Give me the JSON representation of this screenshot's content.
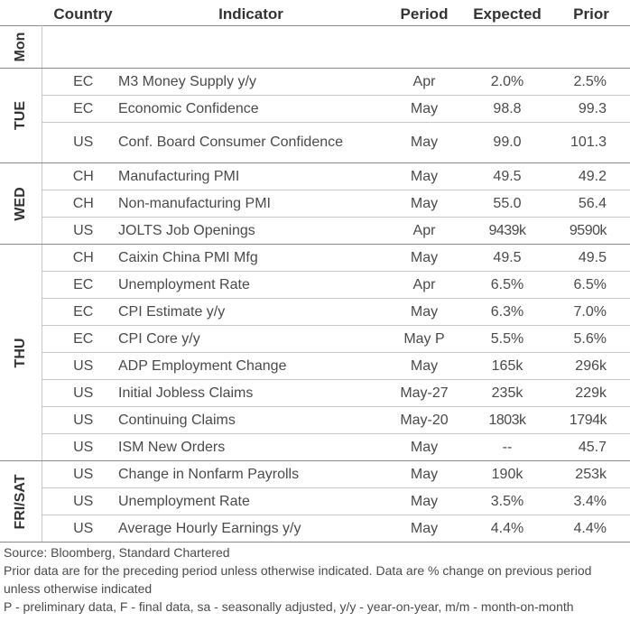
{
  "headers": {
    "country": "Country",
    "indicator": "Indicator",
    "period": "Period",
    "expected": "Expected",
    "prior": "Prior"
  },
  "days": [
    {
      "label": "Mon",
      "rows": []
    },
    {
      "label": "TUE",
      "rows": [
        {
          "country": "EC",
          "indicator": "M3 Money Supply y/y",
          "period": "Apr",
          "expected": "2.0%",
          "prior": "2.5%"
        },
        {
          "country": "EC",
          "indicator": "Economic Confidence",
          "period": "May",
          "expected": "98.8",
          "prior": "99.3"
        },
        {
          "country": "US",
          "indicator": "Conf. Board Consumer Confidence",
          "period": "May",
          "expected": "99.0",
          "prior": "101.3"
        }
      ]
    },
    {
      "label": "WED",
      "rows": [
        {
          "country": "CH",
          "indicator": "Manufacturing PMI",
          "period": "May",
          "expected": "49.5",
          "prior": "49.2"
        },
        {
          "country": "CH",
          "indicator": "Non-manufacturing PMI",
          "period": "May",
          "expected": "55.0",
          "prior": "56.4"
        },
        {
          "country": "US",
          "indicator": "JOLTS Job Openings",
          "period": "Apr",
          "expected": "9439k",
          "prior": "9590k"
        }
      ]
    },
    {
      "label": "THU",
      "rows": [
        {
          "country": "CH",
          "indicator": "Caixin China PMI Mfg",
          "period": "May",
          "expected": "49.5",
          "prior": "49.5"
        },
        {
          "country": "EC",
          "indicator": "Unemployment Rate",
          "period": "Apr",
          "expected": "6.5%",
          "prior": "6.5%"
        },
        {
          "country": "EC",
          "indicator": "CPI Estimate y/y",
          "period": "May",
          "expected": "6.3%",
          "prior": "7.0%"
        },
        {
          "country": "EC",
          "indicator": "CPI Core y/y",
          "period": "May P",
          "expected": "5.5%",
          "prior": "5.6%"
        },
        {
          "country": "US",
          "indicator": "ADP Employment Change",
          "period": "May",
          "expected": "165k",
          "prior": "296k"
        },
        {
          "country": "US",
          "indicator": "Initial Jobless Claims",
          "period": "May-27",
          "expected": "235k",
          "prior": "229k"
        },
        {
          "country": "US",
          "indicator": "Continuing Claims",
          "period": "May-20",
          "expected": "1803k",
          "prior": "1794k"
        },
        {
          "country": "US",
          "indicator": "ISM New Orders",
          "period": "May",
          "expected": "--",
          "prior": "45.7"
        }
      ]
    },
    {
      "label": "FRI/SAT",
      "rows": [
        {
          "country": "US",
          "indicator": "Change in Nonfarm Payrolls",
          "period": "May",
          "expected": "190k",
          "prior": "253k"
        },
        {
          "country": "US",
          "indicator": "Unemployment Rate",
          "period": "May",
          "expected": "3.5%",
          "prior": "3.4%"
        },
        {
          "country": "US",
          "indicator": "Average Hourly Earnings y/y",
          "period": "May",
          "expected": "4.4%",
          "prior": "4.4%"
        }
      ]
    }
  ],
  "footer": {
    "source": "Source: Bloomberg, Standard Chartered",
    "note1": "Prior data are for the preceding period unless otherwise indicated. Data are % change on previous period unless otherwise indicated",
    "note2": "P - preliminary data, F - final data, sa - seasonally adjusted, y/y - year-on-year, m/m - month-on-month"
  }
}
